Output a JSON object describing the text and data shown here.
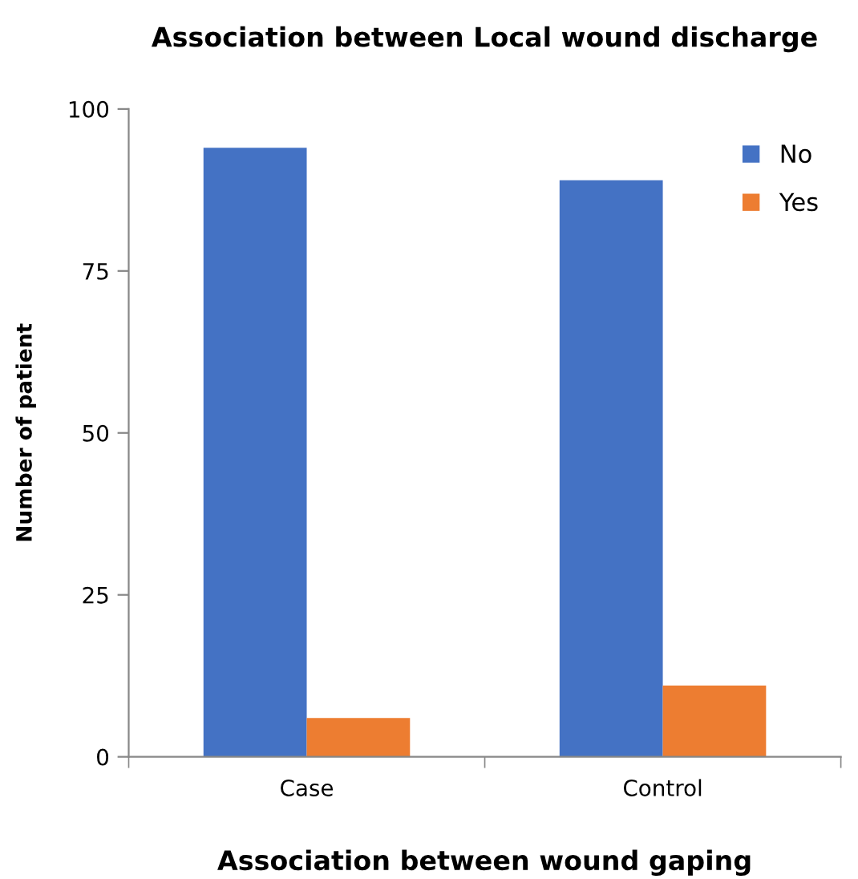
{
  "chart_data": {
    "type": "bar",
    "title": "Association between Local wound discharge",
    "xlabel": "Association between wound gaping",
    "ylabel": "Number of patient",
    "categories": [
      "Case",
      "Control"
    ],
    "series": [
      {
        "name": "No",
        "color": "#4472c4",
        "values": [
          94,
          89
        ]
      },
      {
        "name": "Yes",
        "color": "#ed7d31",
        "values": [
          6,
          11
        ]
      }
    ],
    "ylim": [
      0,
      100
    ],
    "yticks": [
      0,
      25,
      50,
      75,
      100
    ],
    "grid": false,
    "legend": "top right"
  }
}
